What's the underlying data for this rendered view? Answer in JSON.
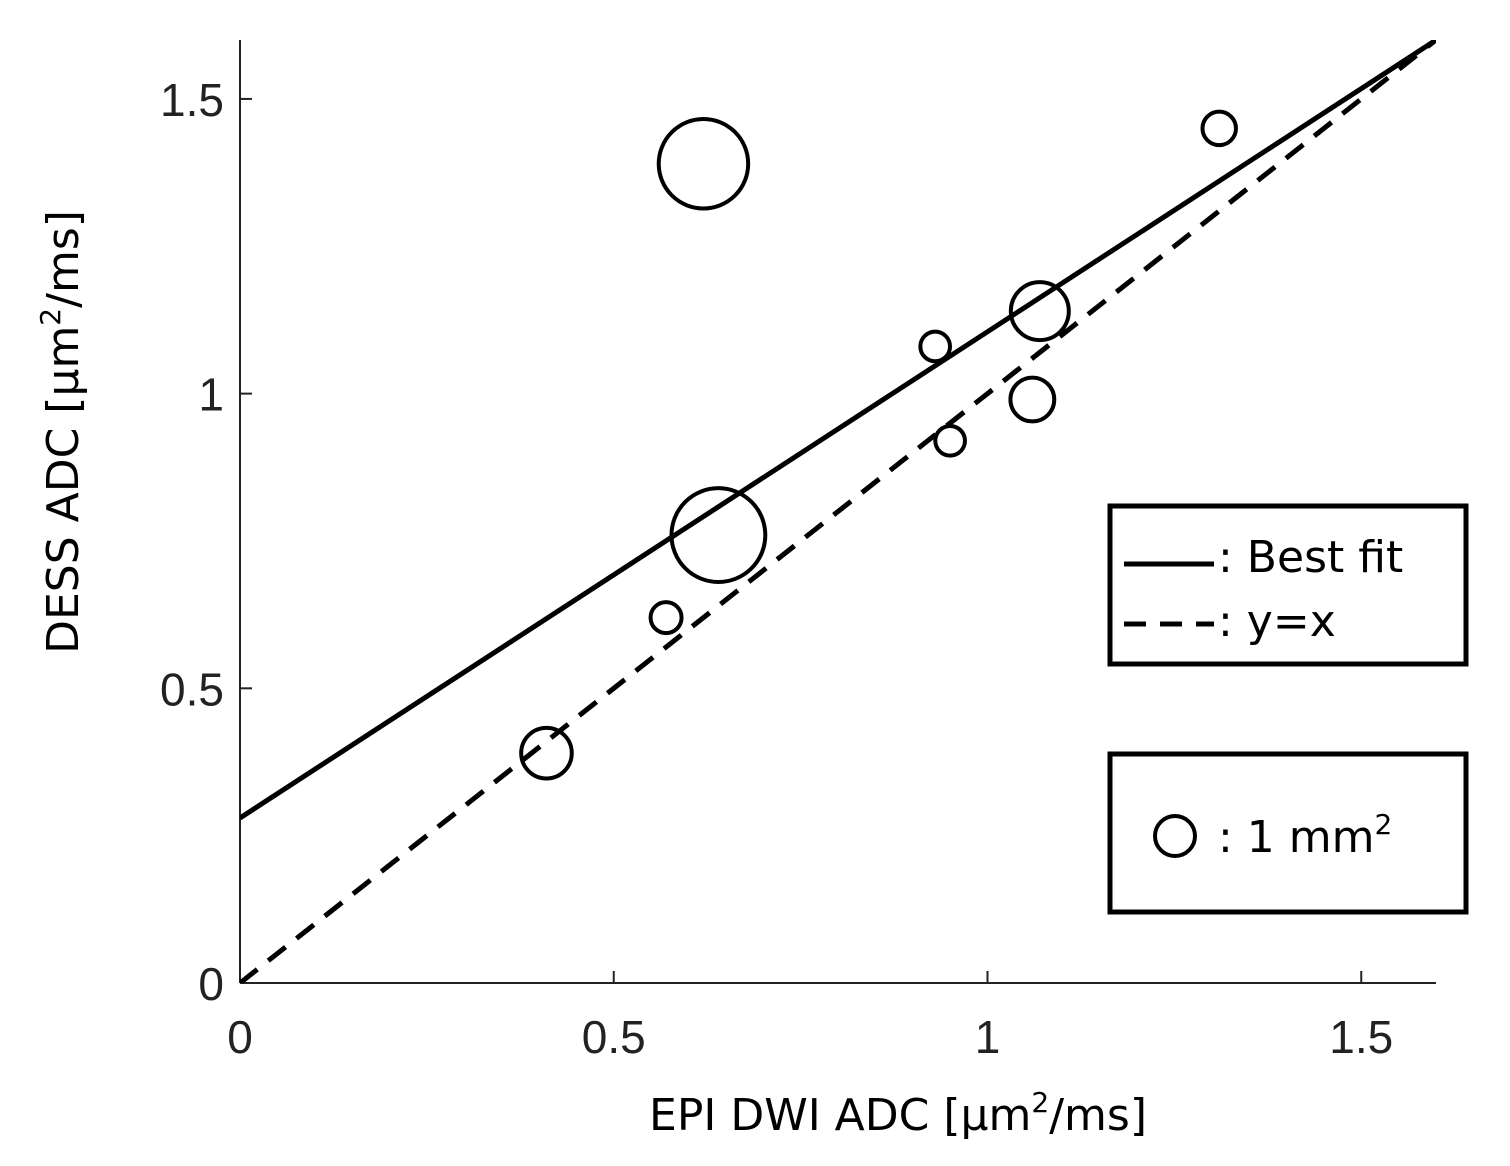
{
  "chart_data": {
    "type": "scatter",
    "xlabel": {
      "prefix": "EPI DWI ADC [μm",
      "sup": "2",
      "suffix": "/ms]"
    },
    "ylabel": {
      "prefix": "DESS ADC [μm",
      "sup": "2",
      "suffix": "/ms]"
    },
    "xlim": [
      0,
      1.6
    ],
    "ylim": [
      0,
      1.6
    ],
    "xticks": [
      {
        "value": 0,
        "label": "0"
      },
      {
        "value": 0.5,
        "label": "0.5"
      },
      {
        "value": 1,
        "label": "1"
      },
      {
        "value": 1.5,
        "label": "1.5"
      }
    ],
    "yticks": [
      {
        "value": 0,
        "label": "0"
      },
      {
        "value": 0.5,
        "label": "0.5"
      },
      {
        "value": 1,
        "label": "1"
      },
      {
        "value": 1.5,
        "label": "1.5"
      }
    ],
    "points": [
      {
        "x": 0.41,
        "y": 0.39,
        "area_mm2": 1.6
      },
      {
        "x": 0.57,
        "y": 0.62,
        "area_mm2": 0.6
      },
      {
        "x": 0.62,
        "y": 1.39,
        "area_mm2": 5.0
      },
      {
        "x": 0.64,
        "y": 0.76,
        "area_mm2": 5.5
      },
      {
        "x": 0.93,
        "y": 1.08,
        "area_mm2": 0.55
      },
      {
        "x": 0.95,
        "y": 0.92,
        "area_mm2": 0.55
      },
      {
        "x": 1.06,
        "y": 0.99,
        "area_mm2": 1.2
      },
      {
        "x": 1.07,
        "y": 1.14,
        "area_mm2": 2.1
      },
      {
        "x": 1.31,
        "y": 1.45,
        "area_mm2": 0.7
      }
    ],
    "lines": [
      {
        "name": "Best fit",
        "style": "solid",
        "slope": 0.825,
        "intercept": 0.28
      },
      {
        "name": "y=x",
        "style": "dashed",
        "slope": 1.0,
        "intercept": 0.0
      }
    ],
    "legend": {
      "placement": "right",
      "entries": [
        {
          "label": ": Best fit",
          "style": "solid"
        },
        {
          "label": ": y=x",
          "style": "dashed"
        }
      ]
    },
    "size_legend": {
      "label_prefix": ": 1 mm",
      "label_sup": "2",
      "area_mm2": 1
    }
  }
}
